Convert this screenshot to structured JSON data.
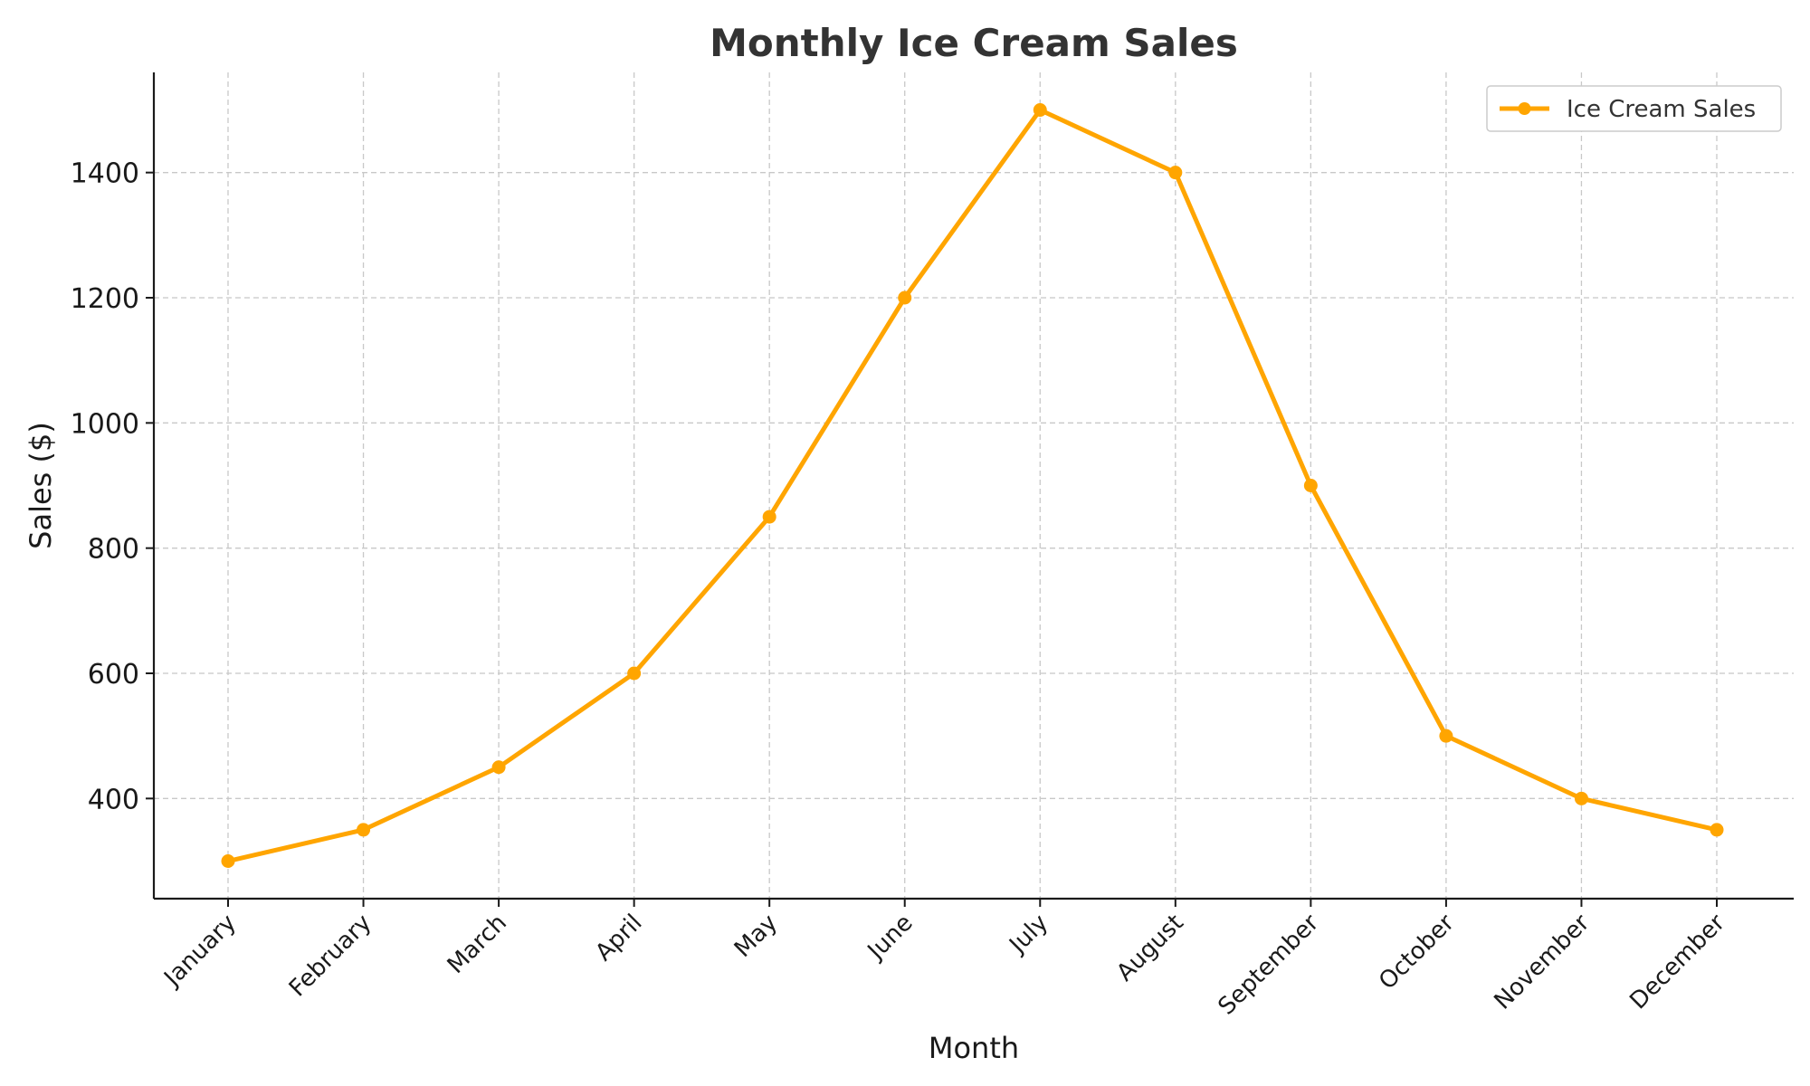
{
  "chart_data": {
    "type": "line",
    "title": "Monthly Ice Cream Sales",
    "xlabel": "Month",
    "ylabel": "Sales ($)",
    "categories": [
      "January",
      "February",
      "March",
      "April",
      "May",
      "June",
      "July",
      "August",
      "September",
      "October",
      "November",
      "December"
    ],
    "series": [
      {
        "name": "Ice Cream Sales",
        "values": [
          300,
          350,
          450,
          600,
          850,
          1200,
          1500,
          1400,
          900,
          500,
          400,
          350
        ],
        "color": "#FFA500",
        "marker": "circle"
      }
    ],
    "ylim": [
      240,
      1560
    ],
    "yticks": [
      400,
      600,
      800,
      1000,
      1200,
      1400
    ],
    "grid": true,
    "grid_style": "dashed",
    "legend_position": "top-right",
    "x_tick_rotation": "45 degrees"
  }
}
